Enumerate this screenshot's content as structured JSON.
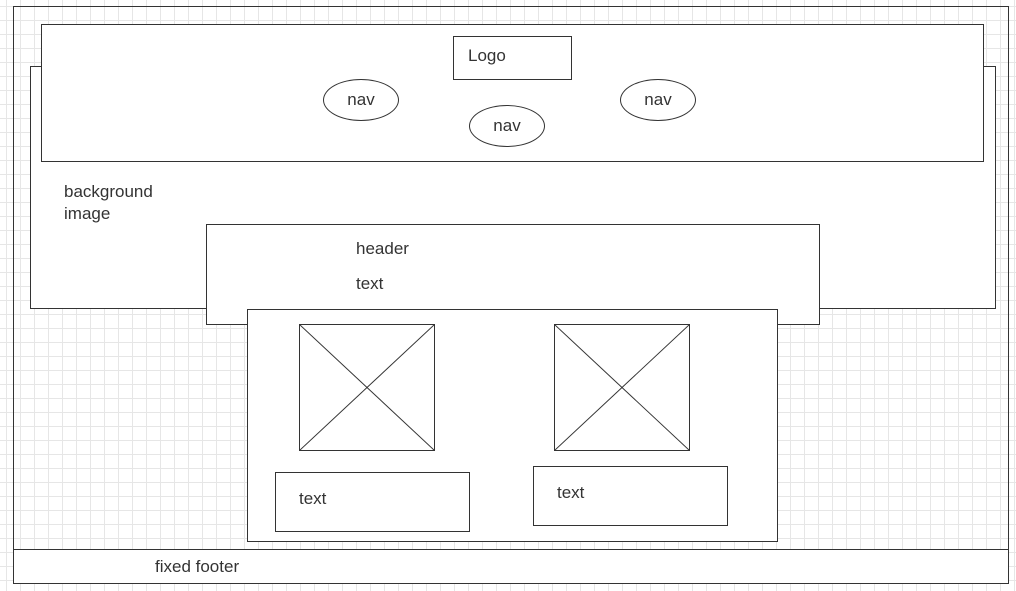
{
  "diagram": {
    "outer_frame": {},
    "background": {
      "label": "background\nimage"
    },
    "navbar": {
      "logo": "Logo",
      "nav_items": [
        "nav",
        "nav",
        "nav"
      ]
    },
    "header_box": {
      "title": "header",
      "text": "text"
    },
    "content": {
      "cards": [
        {
          "image": "image-placeholder",
          "text": "text"
        },
        {
          "image": "image-placeholder",
          "text": "text"
        }
      ]
    },
    "footer": {
      "label": "fixed footer"
    },
    "colors": {
      "stroke": "#333333",
      "grid": "#e6e6e6",
      "fill": "#ffffff"
    }
  }
}
